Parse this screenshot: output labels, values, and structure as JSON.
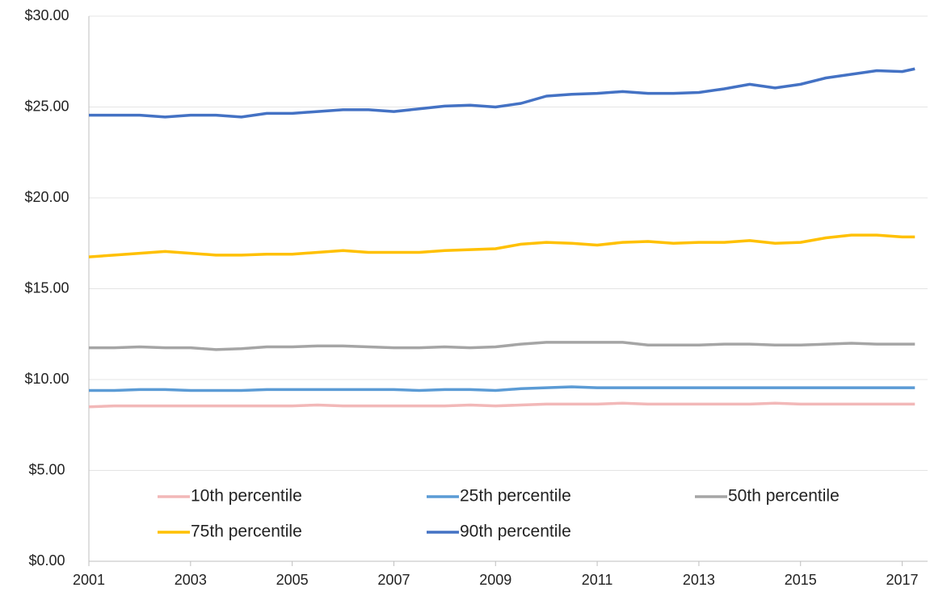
{
  "chart_data": {
    "type": "line",
    "x": [
      2001,
      2001.5,
      2002,
      2002.5,
      2003,
      2003.5,
      2004,
      2004.5,
      2005,
      2005.5,
      2006,
      2006.5,
      2007,
      2007.5,
      2008,
      2008.5,
      2009,
      2009.5,
      2010,
      2010.5,
      2011,
      2011.5,
      2012,
      2012.5,
      2013,
      2013.5,
      2014,
      2014.5,
      2015,
      2015.5,
      2016,
      2016.5,
      2017,
      2017.25
    ],
    "series": [
      {
        "name": "10th percentile",
        "color": "#f2b8b8",
        "values": [
          8.5,
          8.55,
          8.55,
          8.55,
          8.55,
          8.55,
          8.55,
          8.55,
          8.55,
          8.6,
          8.55,
          8.55,
          8.55,
          8.55,
          8.55,
          8.6,
          8.55,
          8.6,
          8.65,
          8.65,
          8.65,
          8.7,
          8.65,
          8.65,
          8.65,
          8.65,
          8.65,
          8.7,
          8.65,
          8.65,
          8.65,
          8.65,
          8.65,
          8.65
        ]
      },
      {
        "name": "25th percentile",
        "color": "#5b9bd5",
        "values": [
          9.4,
          9.4,
          9.45,
          9.45,
          9.4,
          9.4,
          9.4,
          9.45,
          9.45,
          9.45,
          9.45,
          9.45,
          9.45,
          9.4,
          9.45,
          9.45,
          9.4,
          9.5,
          9.55,
          9.6,
          9.55,
          9.55,
          9.55,
          9.55,
          9.55,
          9.55,
          9.55,
          9.55,
          9.55,
          9.55,
          9.55,
          9.55,
          9.55,
          9.55
        ]
      },
      {
        "name": "50th percentile",
        "color": "#a5a5a5",
        "values": [
          11.75,
          11.75,
          11.8,
          11.75,
          11.75,
          11.65,
          11.7,
          11.8,
          11.8,
          11.85,
          11.85,
          11.8,
          11.75,
          11.75,
          11.8,
          11.75,
          11.8,
          11.95,
          12.05,
          12.05,
          12.05,
          12.05,
          11.9,
          11.9,
          11.9,
          11.95,
          11.95,
          11.9,
          11.9,
          11.95,
          12.0,
          11.95,
          11.95,
          11.95
        ]
      },
      {
        "name": "75th percentile",
        "color": "#ffc000",
        "values": [
          16.75,
          16.85,
          16.95,
          17.05,
          16.95,
          16.85,
          16.85,
          16.9,
          16.9,
          17.0,
          17.1,
          17.0,
          17.0,
          17.0,
          17.1,
          17.15,
          17.2,
          17.45,
          17.55,
          17.5,
          17.4,
          17.55,
          17.6,
          17.5,
          17.55,
          17.55,
          17.65,
          17.5,
          17.55,
          17.8,
          17.95,
          17.95,
          17.85,
          17.85
        ]
      },
      {
        "name": "90th percentile",
        "color": "#4472c4",
        "values": [
          24.55,
          24.55,
          24.55,
          24.45,
          24.55,
          24.55,
          24.45,
          24.65,
          24.65,
          24.75,
          24.85,
          24.85,
          24.75,
          24.9,
          25.05,
          25.1,
          25.0,
          25.2,
          25.6,
          25.7,
          25.75,
          25.85,
          25.75,
          25.75,
          25.8,
          26.0,
          26.25,
          26.05,
          26.25,
          26.6,
          26.8,
          27.0,
          26.95,
          27.1
        ]
      }
    ],
    "xlim": [
      2001,
      2017.5
    ],
    "xticks": [
      2001,
      2003,
      2005,
      2007,
      2009,
      2011,
      2013,
      2015,
      2017
    ],
    "ylim": [
      0,
      30
    ],
    "yticks": [
      {
        "value": 0,
        "label": "$0.00"
      },
      {
        "value": 5,
        "label": "$5.00"
      },
      {
        "value": 10,
        "label": "$10.00"
      },
      {
        "value": 15,
        "label": "$15.00"
      },
      {
        "value": 20,
        "label": "$20.00"
      },
      {
        "value": 25,
        "label": "$25.00"
      },
      {
        "value": 30,
        "label": "$30.00"
      }
    ],
    "grid": true,
    "legend": "bottom"
  }
}
